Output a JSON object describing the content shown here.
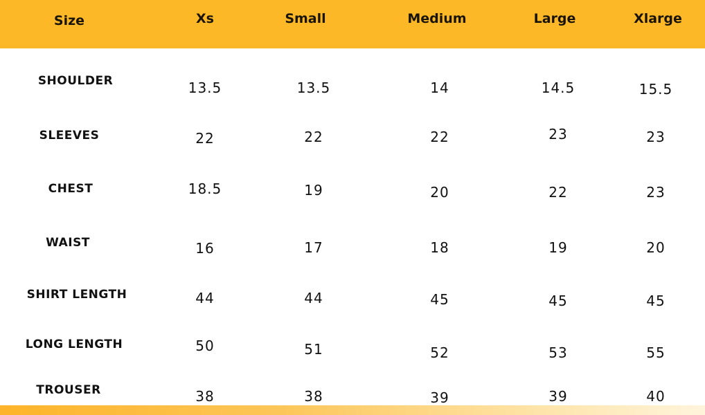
{
  "header": {
    "columns": [
      "Size",
      "Xs",
      "Small",
      "Medium",
      "Large",
      "Xlarge"
    ]
  },
  "rows": [
    {
      "label": "SHOULDER",
      "values": [
        "13.5",
        "13.5",
        "14",
        "14.5",
        "15.5"
      ]
    },
    {
      "label": "SLEEVES",
      "values": [
        "22",
        "22",
        "22",
        "23",
        "23"
      ]
    },
    {
      "label": "CHEST",
      "values": [
        "18.5",
        "19",
        "20",
        "22",
        "23"
      ]
    },
    {
      "label": "WAIST",
      "values": [
        "16",
        "17",
        "18",
        "19",
        "20"
      ]
    },
    {
      "label": "SHIRT LENGTH",
      "values": [
        "44",
        "44",
        "45",
        "45",
        "45"
      ]
    },
    {
      "label": "LONG LENGTH",
      "values": [
        "50",
        "51",
        "52",
        "53",
        "55"
      ]
    },
    {
      "label": "TROUSER",
      "values": [
        "38",
        "38",
        "39",
        "39",
        "40"
      ]
    }
  ],
  "colors": {
    "header": "#fdb827",
    "text": "#111111"
  }
}
